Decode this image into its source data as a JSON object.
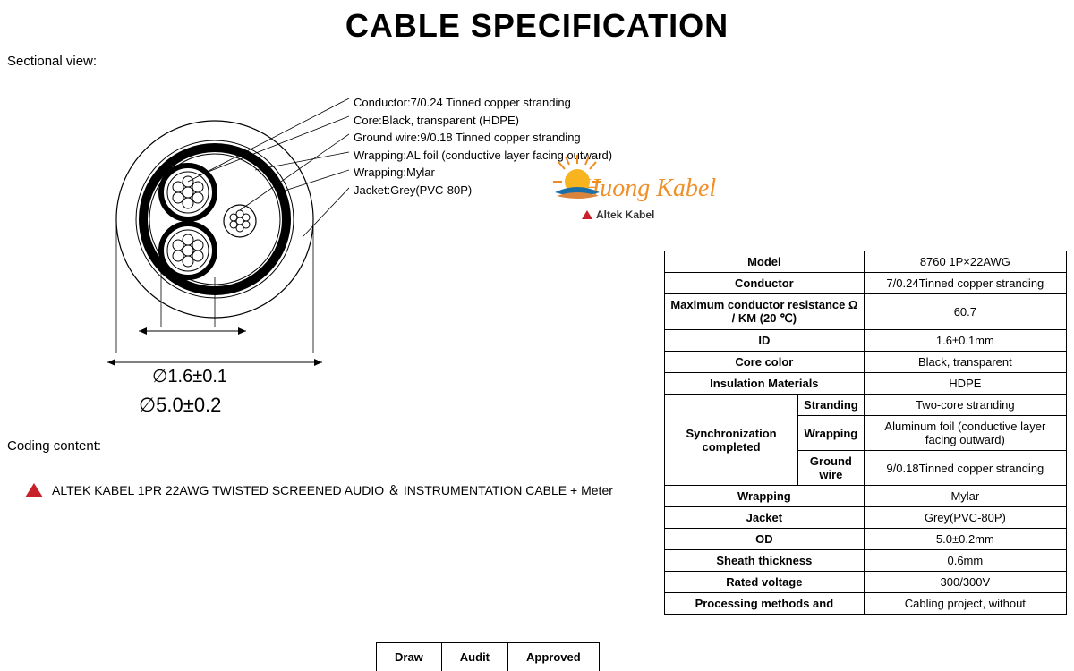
{
  "title": "CABLE SPECIFICATION",
  "section_label": "Sectional view:",
  "callouts": {
    "conductor": "Conductor:7/0.24 Tinned copper stranding",
    "core": "Core:Black, transparent (HDPE)",
    "ground": "Ground wire:9/0.18 Tinned copper stranding",
    "wrap_al": "Wrapping:AL foil (conductive layer facing outward)",
    "wrap_mylar": "Wrapping:Mylar",
    "jacket": "Jacket:Grey(PVC-80P)"
  },
  "dims": {
    "inner": "∅1.6±0.1",
    "outer": "∅5.0±0.2"
  },
  "coding_label": "Coding content:",
  "coding_text": "ALTEK KABEL 1PR 22AWG TWISTED SCREENED AUDIO ＆ INSTRUMENTATION CABLE + Meter",
  "brand": {
    "name": "Huong Kabel",
    "sub": "Altek Kabel"
  },
  "spec": {
    "rows": [
      {
        "k": "Model",
        "v": "8760 1P×22AWG"
      },
      {
        "k": "Conductor",
        "v": "7/0.24Tinned copper stranding"
      },
      {
        "k": "Maximum conductor resistance Ω / KM (20 ℃)",
        "v": "60.7"
      },
      {
        "k": "ID",
        "v": "1.6±0.1mm"
      },
      {
        "k": "Core color",
        "v": "Black, transparent"
      },
      {
        "k": "Insulation Materials",
        "v": "HDPE"
      }
    ],
    "sync_label": "Synchronization completed",
    "sync_rows": [
      {
        "k2": "Stranding",
        "v": "Two-core stranding"
      },
      {
        "k2": "Wrapping",
        "v": "Aluminum foil (conductive layer facing outward)"
      },
      {
        "k2": "Ground wire",
        "v": "9/0.18Tinned copper stranding"
      }
    ],
    "rows2": [
      {
        "k": "Wrapping",
        "v": "Mylar"
      },
      {
        "k": "Jacket",
        "v": "Grey(PVC-80P)"
      },
      {
        "k": "OD",
        "v": "5.0±0.2mm"
      },
      {
        "k": "Sheath thickness",
        "v": "0.6mm"
      },
      {
        "k": "Rated voltage",
        "v": "300/300V"
      },
      {
        "k": "Processing methods and",
        "v": "Cabling project, without"
      }
    ]
  },
  "review": {
    "draw": "Draw",
    "audit": "Audit",
    "approved": "Approved"
  },
  "diagram": {
    "outer_r": 110,
    "shield_r": 80,
    "core_r": 28,
    "ground_r": 18,
    "colors": {
      "stroke": "#000000",
      "fill": "#ffffff",
      "shield_fill": "#000000"
    }
  }
}
